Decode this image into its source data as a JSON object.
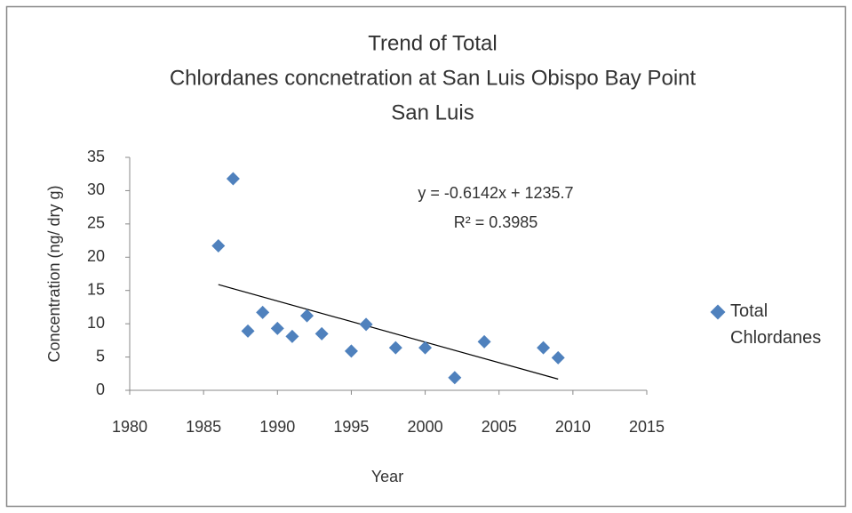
{
  "chart_data": {
    "type": "scatter",
    "title": [
      "Trend of Total",
      "Chlordanes concnetration at San Luis Obispo Bay Point",
      "San Luis"
    ],
    "xlabel": "Year",
    "ylabel": "Concentration (ng/ dry g)",
    "series": [
      {
        "name": "Total Chlordanes",
        "color": "#4f81bd",
        "x": [
          1986,
          1987,
          1988,
          1989,
          1990,
          1991,
          1992,
          1993,
          1995,
          1996,
          1998,
          2000,
          2002,
          2004,
          2008,
          2009
        ],
        "values": [
          21.7,
          31.8,
          8.9,
          11.7,
          9.3,
          8.1,
          11.2,
          8.5,
          5.9,
          9.9,
          6.4,
          6.4,
          1.9,
          7.3,
          6.4,
          4.9
        ]
      }
    ],
    "trendline": true,
    "annotations": [
      "y = -0.6142x + 1235.7",
      "R² = 0.3985"
    ],
    "xlim": [
      1980,
      2015
    ],
    "xticks": [
      1980,
      1985,
      1990,
      1995,
      2000,
      2005,
      2010,
      2015
    ],
    "ylim": [
      0,
      35
    ],
    "yticks": [
      0,
      5,
      10,
      15,
      20,
      25,
      30,
      35
    ],
    "grid": false,
    "legend": "right"
  }
}
